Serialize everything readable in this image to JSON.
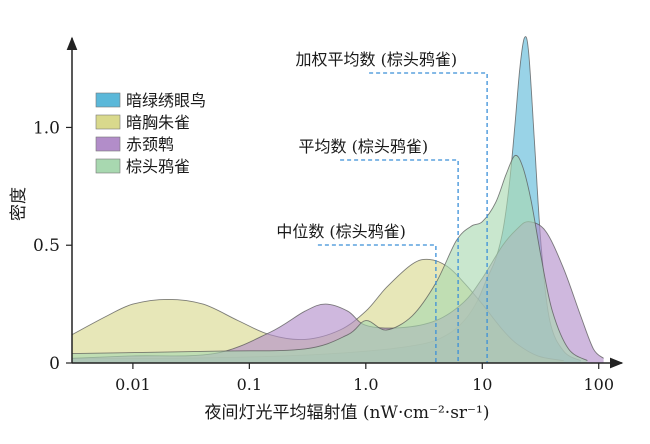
{
  "chart_data": {
    "type": "area",
    "title": "",
    "xlabel": "夜间灯光平均辐射值 (nW·cm⁻²·sr⁻¹)",
    "ylabel": "密度",
    "x_scale": "log",
    "xlim": [
      0.003,
      130
    ],
    "ylim": [
      0,
      1.35
    ],
    "x_ticks": [
      0.01,
      0.1,
      1.0,
      10,
      100
    ],
    "x_tick_labels": [
      "0.01",
      "0.1",
      "1.0",
      "10",
      "100"
    ],
    "y_ticks": [
      0,
      0.5,
      1.0
    ],
    "y_tick_labels": [
      "0",
      "0.5",
      "1.0"
    ],
    "legend_position": "top-left",
    "series": [
      {
        "name": "暗绿绣眼鸟",
        "color": "#5bb8d9",
        "x": [
          0.003,
          0.02,
          0.2,
          1,
          3,
          5,
          7,
          9,
          11,
          13,
          15,
          17,
          19,
          21,
          23,
          25,
          28,
          32,
          38,
          50,
          70
        ],
        "y": [
          0.02,
          0.02,
          0.03,
          0.05,
          0.08,
          0.12,
          0.18,
          0.26,
          0.36,
          0.44,
          0.56,
          0.75,
          1.0,
          1.25,
          1.38,
          1.32,
          0.95,
          0.5,
          0.18,
          0.05,
          0.01
        ]
      },
      {
        "name": "暗胸朱雀",
        "color": "#d9d98c",
        "x": [
          0.003,
          0.006,
          0.01,
          0.02,
          0.04,
          0.08,
          0.15,
          0.3,
          0.6,
          1,
          1.5,
          2.5,
          3.5,
          5,
          7,
          10,
          15,
          20,
          30,
          50
        ],
        "y": [
          0.12,
          0.2,
          0.25,
          0.27,
          0.25,
          0.18,
          0.12,
          0.1,
          0.14,
          0.22,
          0.32,
          0.42,
          0.44,
          0.41,
          0.34,
          0.25,
          0.14,
          0.08,
          0.03,
          0.01
        ]
      },
      {
        "name": "赤颈鹎",
        "color": "#b28dc9",
        "x": [
          0.003,
          0.01,
          0.05,
          0.15,
          0.3,
          0.45,
          0.7,
          1,
          2,
          4,
          7,
          10,
          15,
          20,
          25,
          35,
          50,
          70,
          90,
          110
        ],
        "y": [
          0.02,
          0.03,
          0.04,
          0.13,
          0.22,
          0.25,
          0.22,
          0.16,
          0.15,
          0.18,
          0.26,
          0.36,
          0.5,
          0.57,
          0.6,
          0.56,
          0.4,
          0.2,
          0.06,
          0.02
        ]
      },
      {
        "name": "棕头鸦雀",
        "color": "#a8d8b0",
        "x": [
          0.003,
          0.05,
          0.3,
          0.7,
          1,
          1.5,
          2.5,
          4,
          6,
          8,
          10,
          13,
          16,
          19,
          22,
          26,
          32,
          40,
          55,
          80
        ],
        "y": [
          0.04,
          0.05,
          0.06,
          0.12,
          0.18,
          0.14,
          0.2,
          0.34,
          0.52,
          0.58,
          0.6,
          0.68,
          0.8,
          0.88,
          0.84,
          0.7,
          0.45,
          0.22,
          0.06,
          0.01
        ]
      }
    ],
    "annotations": [
      {
        "label": "加权平均数 (棕头鸦雀)",
        "x": 11
      },
      {
        "label": "平均数 (棕头鸦雀)",
        "x": 6.2
      },
      {
        "label": "中位数 (棕头鸦雀)",
        "x": 4.0
      }
    ]
  }
}
